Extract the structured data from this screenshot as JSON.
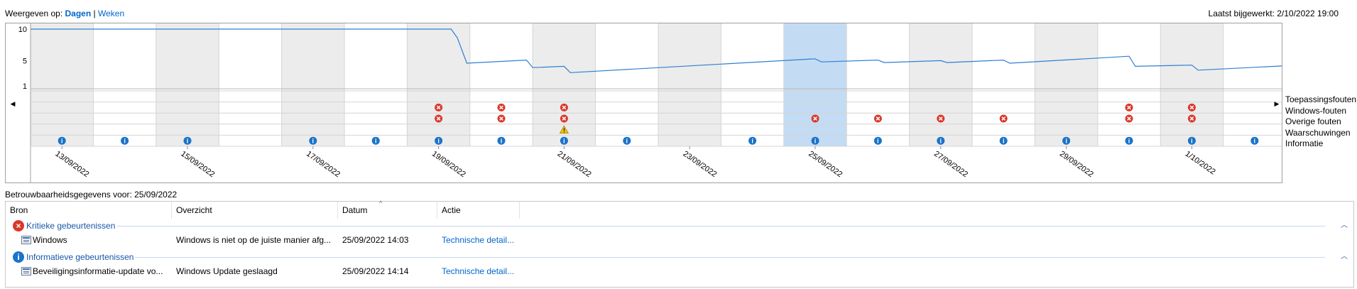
{
  "view": {
    "label": "Weergeven op:",
    "days": "Dagen",
    "separator": "|",
    "weeks": "Weken"
  },
  "last_updated": "Laatst bijgewerkt: 2/10/2022 19:00",
  "chart_data": {
    "type": "line",
    "y_ticks": [
      "10",
      "5",
      "1"
    ],
    "ylim": [
      1,
      10
    ],
    "days": 20,
    "selected_day_index": 12,
    "shaded_day_indices": [
      0,
      2,
      4,
      6,
      8,
      10,
      14,
      16,
      18
    ],
    "x_tick_labels": [
      {
        "day": 0,
        "label": "13/09/2022"
      },
      {
        "day": 2,
        "label": "15/09/2022"
      },
      {
        "day": 4,
        "label": "17/09/2022"
      },
      {
        "day": 6,
        "label": "19/09/2022"
      },
      {
        "day": 8,
        "label": "21/09/2022"
      },
      {
        "day": 10,
        "label": "23/09/2022"
      },
      {
        "day": 12,
        "label": "25/09/2022"
      },
      {
        "day": 14,
        "label": "27/09/2022"
      },
      {
        "day": 16,
        "label": "29/09/2022"
      },
      {
        "day": 18,
        "label": "1/10/2022"
      }
    ],
    "stability_series": [
      {
        "day": 0,
        "value": 10
      },
      {
        "day": 6.7,
        "value": 10
      },
      {
        "day": 6.8,
        "value": 8.6
      },
      {
        "day": 6.95,
        "value": 4.6
      },
      {
        "day": 7.9,
        "value": 5.1
      },
      {
        "day": 8.0,
        "value": 3.9
      },
      {
        "day": 8.5,
        "value": 4.1
      },
      {
        "day": 8.6,
        "value": 3.1
      },
      {
        "day": 12.5,
        "value": 5.3
      },
      {
        "day": 12.6,
        "value": 4.8
      },
      {
        "day": 13.5,
        "value": 5.1
      },
      {
        "day": 13.6,
        "value": 4.7
      },
      {
        "day": 14.5,
        "value": 5.0
      },
      {
        "day": 14.6,
        "value": 4.7
      },
      {
        "day": 15.5,
        "value": 5.1
      },
      {
        "day": 15.6,
        "value": 4.6
      },
      {
        "day": 17.5,
        "value": 5.7
      },
      {
        "day": 17.6,
        "value": 4.1
      },
      {
        "day": 18.5,
        "value": 4.3
      },
      {
        "day": 18.6,
        "value": 3.5
      },
      {
        "day": 20,
        "value": 4.2
      }
    ],
    "row_labels": [
      "Toepassingsfouten",
      "Windows-fouten",
      "Overige fouten",
      "Waarschuwingen",
      "Informatie"
    ],
    "events": {
      "windows_errors": [
        6,
        7,
        8,
        17,
        18
      ],
      "other_errors": [
        6,
        7,
        8,
        12,
        13,
        14,
        15,
        17,
        18
      ],
      "warnings": [
        8
      ],
      "information": [
        0,
        1,
        2,
        4,
        5,
        6,
        7,
        8,
        9,
        11,
        12,
        13,
        14,
        15,
        16,
        17,
        18,
        19
      ]
    },
    "colors": {
      "line": "#2e7fd2",
      "shade": "#ececec",
      "selected": "#c3dcf3",
      "error": "#d9382b",
      "info": "#1a73c9",
      "warning": "#f3c30a"
    }
  },
  "details": {
    "title": "Betrouwbaarheidsgegevens voor: 25/09/2022",
    "columns": [
      "Bron",
      "Overzicht",
      "Datum",
      "Actie"
    ],
    "groups": [
      {
        "label": "Kritieke gebeurtenissen",
        "icon": "error-icon",
        "color": "#d9382b",
        "rows": [
          {
            "source": "Windows",
            "summary": "Windows is niet op de juiste manier afg...",
            "date": "25/09/2022 14:03",
            "action": "Technische detail..."
          }
        ]
      },
      {
        "label": "Informatieve gebeurtenissen",
        "icon": "info-icon",
        "color": "#1a73c9",
        "rows": [
          {
            "source": "Beveiligingsinformatie-update vo...",
            "summary": "Windows Update geslaagd",
            "date": "25/09/2022 14:14",
            "action": "Technische detail..."
          }
        ]
      }
    ]
  }
}
